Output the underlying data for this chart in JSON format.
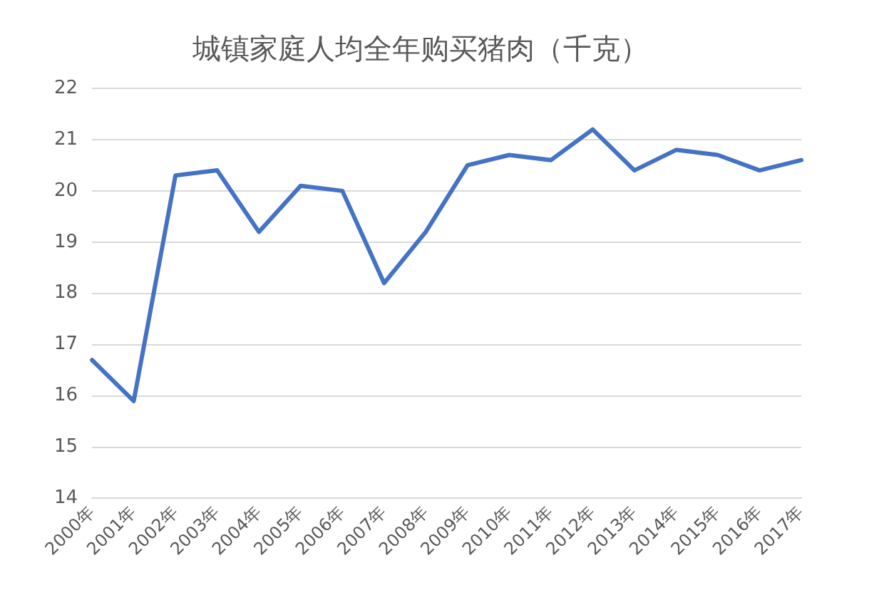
{
  "chart_data": {
    "type": "line",
    "title": "城镇家庭人均全年购买猪肉（千克）",
    "categories": [
      "2000年",
      "2001年",
      "2002年",
      "2003年",
      "2004年",
      "2005年",
      "2006年",
      "2007年",
      "2008年",
      "2009年",
      "2010年",
      "2011年",
      "2012年",
      "2013年",
      "2014年",
      "2015年",
      "2016年",
      "2017年"
    ],
    "series": [
      {
        "color": "#4472c4",
        "values": [
          16.7,
          15.9,
          20.3,
          20.4,
          19.2,
          20.1,
          20.0,
          18.2,
          19.2,
          20.5,
          20.7,
          20.6,
          21.2,
          20.4,
          20.8,
          20.7,
          20.4,
          20.6
        ]
      }
    ],
    "ylim": [
      14,
      22
    ],
    "yticks": [
      14,
      15,
      16,
      17,
      18,
      19,
      20,
      21,
      22
    ],
    "grid": "y",
    "legend": false,
    "marker": "none",
    "line_style": "solid"
  }
}
